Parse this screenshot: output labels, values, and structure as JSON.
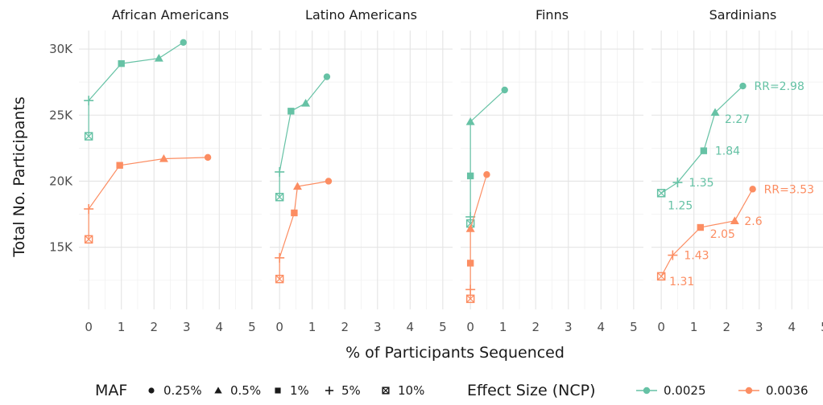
{
  "chart_data": {
    "type": "line",
    "facets": [
      {
        "name": "African Americans",
        "series": [
          {
            "effect": "0.0025",
            "points": [
              {
                "maf": "10%",
                "x": 0,
                "y": 23400
              },
              {
                "maf": "5%",
                "x": 0,
                "y": 26100
              },
              {
                "maf": "1%",
                "x": 1.0,
                "y": 28900
              },
              {
                "maf": "0.5%",
                "x": 2.15,
                "y": 29300
              },
              {
                "maf": "0.25%",
                "x": 2.9,
                "y": 30500
              }
            ]
          },
          {
            "effect": "0.0036",
            "points": [
              {
                "maf": "10%",
                "x": 0,
                "y": 15600
              },
              {
                "maf": "5%",
                "x": 0,
                "y": 17900
              },
              {
                "maf": "1%",
                "x": 0.95,
                "y": 21200
              },
              {
                "maf": "0.5%",
                "x": 2.3,
                "y": 21700
              },
              {
                "maf": "0.25%",
                "x": 3.65,
                "y": 21800
              }
            ]
          }
        ],
        "labels": []
      },
      {
        "name": "Latino Americans",
        "series": [
          {
            "effect": "0.0025",
            "points": [
              {
                "maf": "10%",
                "x": 0,
                "y": 18800
              },
              {
                "maf": "5%",
                "x": 0,
                "y": 20700
              },
              {
                "maf": "1%",
                "x": 0.35,
                "y": 25300
              },
              {
                "maf": "0.5%",
                "x": 0.8,
                "y": 25900
              },
              {
                "maf": "0.25%",
                "x": 1.45,
                "y": 27900
              }
            ]
          },
          {
            "effect": "0.0036",
            "points": [
              {
                "maf": "10%",
                "x": 0,
                "y": 12600
              },
              {
                "maf": "5%",
                "x": 0,
                "y": 14200
              },
              {
                "maf": "1%",
                "x": 0.45,
                "y": 17600
              },
              {
                "maf": "0.5%",
                "x": 0.55,
                "y": 19600
              },
              {
                "maf": "0.25%",
                "x": 1.5,
                "y": 20000
              }
            ]
          }
        ],
        "labels": []
      },
      {
        "name": "Finns",
        "series": [
          {
            "effect": "0.0025",
            "points": [
              {
                "maf": "10%",
                "x": 0,
                "y": 16800
              },
              {
                "maf": "5%",
                "x": 0,
                "y": 17300
              },
              {
                "maf": "1%",
                "x": 0,
                "y": 20400
              },
              {
                "maf": "0.5%",
                "x": 0,
                "y": 24500
              },
              {
                "maf": "0.25%",
                "x": 1.05,
                "y": 26900
              }
            ]
          },
          {
            "effect": "0.0036",
            "points": [
              {
                "maf": "10%",
                "x": 0,
                "y": 11100
              },
              {
                "maf": "5%",
                "x": 0,
                "y": 11800
              },
              {
                "maf": "1%",
                "x": 0,
                "y": 13800
              },
              {
                "maf": "0.5%",
                "x": 0,
                "y": 16400
              },
              {
                "maf": "0.25%",
                "x": 0.5,
                "y": 20500
              }
            ]
          }
        ],
        "labels": []
      },
      {
        "name": "Sardinians",
        "series": [
          {
            "effect": "0.0025",
            "points": [
              {
                "maf": "10%",
                "x": 0,
                "y": 19100
              },
              {
                "maf": "5%",
                "x": 0.5,
                "y": 19900
              },
              {
                "maf": "1%",
                "x": 1.3,
                "y": 22300
              },
              {
                "maf": "0.5%",
                "x": 1.65,
                "y": 25200
              },
              {
                "maf": "0.25%",
                "x": 2.5,
                "y": 27200
              }
            ]
          },
          {
            "effect": "0.0036",
            "points": [
              {
                "maf": "10%",
                "x": 0,
                "y": 12800
              },
              {
                "maf": "5%",
                "x": 0.35,
                "y": 14400
              },
              {
                "maf": "1%",
                "x": 1.2,
                "y": 16500
              },
              {
                "maf": "0.5%",
                "x": 2.25,
                "y": 17000
              },
              {
                "maf": "0.25%",
                "x": 2.8,
                "y": 19400
              }
            ]
          }
        ],
        "labels": [
          {
            "effect": "0.0025",
            "maf": "0.25%",
            "text": "RR=2.98"
          },
          {
            "effect": "0.0025",
            "maf": "0.5%",
            "text": "2.27"
          },
          {
            "effect": "0.0025",
            "maf": "1%",
            "text": "1.84"
          },
          {
            "effect": "0.0025",
            "maf": "5%",
            "text": "1.35"
          },
          {
            "effect": "0.0025",
            "maf": "10%",
            "text": "1.25"
          },
          {
            "effect": "0.0036",
            "maf": "0.25%",
            "text": "RR=3.53"
          },
          {
            "effect": "0.0036",
            "maf": "0.5%",
            "text": "2.6"
          },
          {
            "effect": "0.0036",
            "maf": "1%",
            "text": "2.05"
          },
          {
            "effect": "0.0036",
            "maf": "5%",
            "text": "1.43"
          },
          {
            "effect": "0.0036",
            "maf": "10%",
            "text": "1.31"
          }
        ]
      }
    ],
    "x_axis": {
      "title": "% of Participants Sequenced",
      "range": [
        -0.3,
        5.3
      ],
      "ticks": [
        0,
        1,
        2,
        3,
        4,
        5
      ],
      "tick_labels": [
        "0",
        "1",
        "2",
        "3",
        "4",
        "5"
      ],
      "last_panel_tick_labels": [
        "0",
        "1",
        "2",
        "3",
        "4",
        "5"
      ]
    },
    "y_axis": {
      "title": "Total No. Participants",
      "range": [
        10300,
        31400
      ],
      "ticks": [
        15000,
        20000,
        25000,
        30000
      ],
      "tick_labels": [
        "15K",
        "20K",
        "25K",
        "30K"
      ]
    },
    "grid": true,
    "legend": {
      "position": "bottom",
      "shape": {
        "title": "MAF",
        "items": [
          {
            "label": "0.25%",
            "shape": "circle"
          },
          {
            "label": "0.5%",
            "shape": "triangle"
          },
          {
            "label": "1%",
            "shape": "square"
          },
          {
            "label": "5%",
            "shape": "plus"
          },
          {
            "label": "10%",
            "shape": "boxed-x"
          }
        ]
      },
      "color": {
        "title": "Effect Size (NCP)",
        "items": [
          {
            "label": "0.0025",
            "color": "#66c2a5"
          },
          {
            "label": "0.0036",
            "color": "#fc8d62"
          }
        ]
      }
    },
    "colors": {
      "0.0025": "#66c2a5",
      "0.0036": "#fc8d62"
    }
  }
}
